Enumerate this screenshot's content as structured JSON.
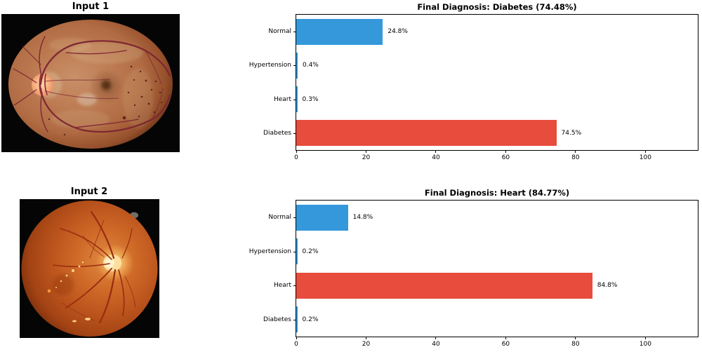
{
  "inputs": [
    {
      "title": "Input 1"
    },
    {
      "title": "Input 2"
    }
  ],
  "chart_data": [
    {
      "type": "bar",
      "orientation": "horizontal",
      "title": "Final Diagnosis: Diabetes (74.48%)",
      "final_diagnosis": {
        "label": "Diabetes",
        "probability_text": "74.48%"
      },
      "categories": [
        "Normal",
        "Hypertension",
        "Heart",
        "Diabetes"
      ],
      "values": [
        24.8,
        0.4,
        0.3,
        74.5
      ],
      "value_labels": [
        "24.8%",
        "0.4%",
        "0.3%",
        "74.5%"
      ],
      "colors": [
        "#3498db",
        "#3498db",
        "#3498db",
        "#e74c3c"
      ],
      "xlim": [
        0,
        115
      ],
      "xticks": [
        0,
        20,
        40,
        60,
        80,
        100
      ],
      "grid": false,
      "legend": null
    },
    {
      "type": "bar",
      "orientation": "horizontal",
      "title": "Final Diagnosis: Heart (84.77%)",
      "final_diagnosis": {
        "label": "Heart",
        "probability_text": "84.77%"
      },
      "categories": [
        "Normal",
        "Hypertension",
        "Heart",
        "Diabetes"
      ],
      "values": [
        14.8,
        0.2,
        84.8,
        0.2
      ],
      "value_labels": [
        "14.8%",
        "0.2%",
        "84.8%",
        "0.2%"
      ],
      "colors": [
        "#3498db",
        "#3498db",
        "#e74c3c",
        "#3498db"
      ],
      "xlim": [
        0,
        115
      ],
      "xticks": [
        0,
        20,
        40,
        60,
        80,
        100
      ],
      "grid": false,
      "legend": null
    }
  ],
  "palette": {
    "bar_blue": "#3498db",
    "bar_red": "#e74c3c",
    "text": "#000000",
    "background": "#ffffff"
  }
}
